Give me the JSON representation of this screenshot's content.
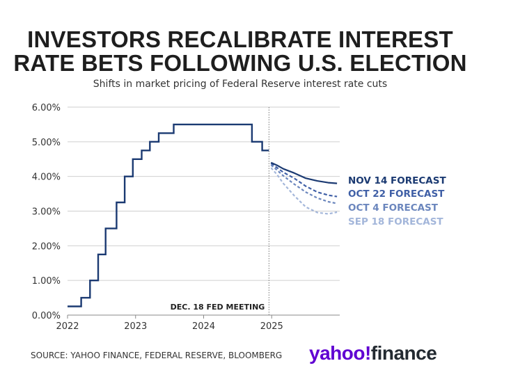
{
  "title_line1": "INVESTORS RECALIBRATE INTEREST",
  "title_line2": "RATE BETS FOLLOWING U.S. ELECTION",
  "subtitle": "Shifts in market pricing of Federal Reserve interest rate cuts",
  "source": "SOURCE: YAHOO FINANCE, FEDERAL RESERVE, BLOOMBERG",
  "logo": {
    "yahoo": "yahoo!",
    "finance": "finance",
    "brand_color": "#6001d2"
  },
  "chart_data": {
    "type": "line",
    "ylim": [
      0,
      6
    ],
    "xlim": [
      2022,
      2026
    ],
    "y_ticks": [
      "0.00%",
      "1.00%",
      "2.00%",
      "3.00%",
      "4.00%",
      "5.00%",
      "6.00%"
    ],
    "x_ticks": [
      "2022",
      "2023",
      "2024",
      "2025"
    ],
    "grid": true,
    "annotation": "DEC. 18 FED MEETING",
    "annotation_x": 2024.96,
    "historical": {
      "color": "#1b3a72",
      "step_points": [
        [
          2022.0,
          0.25
        ],
        [
          2022.2,
          0.25
        ],
        [
          2022.2,
          0.5
        ],
        [
          2022.33,
          0.5
        ],
        [
          2022.33,
          1.0
        ],
        [
          2022.45,
          1.0
        ],
        [
          2022.45,
          1.75
        ],
        [
          2022.56,
          1.75
        ],
        [
          2022.56,
          2.5
        ],
        [
          2022.72,
          2.5
        ],
        [
          2022.72,
          3.25
        ],
        [
          2022.84,
          3.25
        ],
        [
          2022.84,
          4.0
        ],
        [
          2022.96,
          4.0
        ],
        [
          2022.96,
          4.5
        ],
        [
          2023.09,
          4.5
        ],
        [
          2023.09,
          4.75
        ],
        [
          2023.21,
          4.75
        ],
        [
          2023.21,
          5.0
        ],
        [
          2023.34,
          5.0
        ],
        [
          2023.34,
          5.25
        ],
        [
          2023.56,
          5.25
        ],
        [
          2023.56,
          5.5
        ],
        [
          2024.71,
          5.5
        ],
        [
          2024.71,
          5.0
        ],
        [
          2024.86,
          5.0
        ],
        [
          2024.86,
          4.75
        ],
        [
          2024.96,
          4.75
        ]
      ]
    },
    "series": [
      {
        "name": "NOV 14 FORECAST",
        "color": "#1b3a72",
        "dash": "",
        "x": [
          2024.99,
          2025.08,
          2025.17,
          2025.33,
          2025.5,
          2025.67,
          2025.83,
          2025.96
        ],
        "y": [
          4.4,
          4.32,
          4.22,
          4.1,
          3.95,
          3.87,
          3.82,
          3.8
        ]
      },
      {
        "name": "OCT 22 FORECAST",
        "color": "#3f5fa6",
        "dash": "5,3",
        "x": [
          2024.99,
          2025.08,
          2025.17,
          2025.33,
          2025.5,
          2025.67,
          2025.83,
          2025.96
        ],
        "y": [
          4.38,
          4.25,
          4.12,
          3.95,
          3.72,
          3.55,
          3.46,
          3.42
        ]
      },
      {
        "name": "OCT 4 FORECAST",
        "color": "#6b86bd",
        "dash": "4,3",
        "x": [
          2024.99,
          2025.08,
          2025.17,
          2025.33,
          2025.5,
          2025.67,
          2025.83,
          2025.96
        ],
        "y": [
          4.33,
          4.18,
          4.02,
          3.78,
          3.55,
          3.38,
          3.27,
          3.22
        ]
      },
      {
        "name": "SEP 18 FORECAST",
        "color": "#a3b6da",
        "dash": "4,3",
        "x": [
          2024.99,
          2025.08,
          2025.17,
          2025.33,
          2025.5,
          2025.67,
          2025.83,
          2025.96
        ],
        "y": [
          4.25,
          4.05,
          3.8,
          3.45,
          3.12,
          2.96,
          2.92,
          2.97
        ]
      }
    ]
  }
}
